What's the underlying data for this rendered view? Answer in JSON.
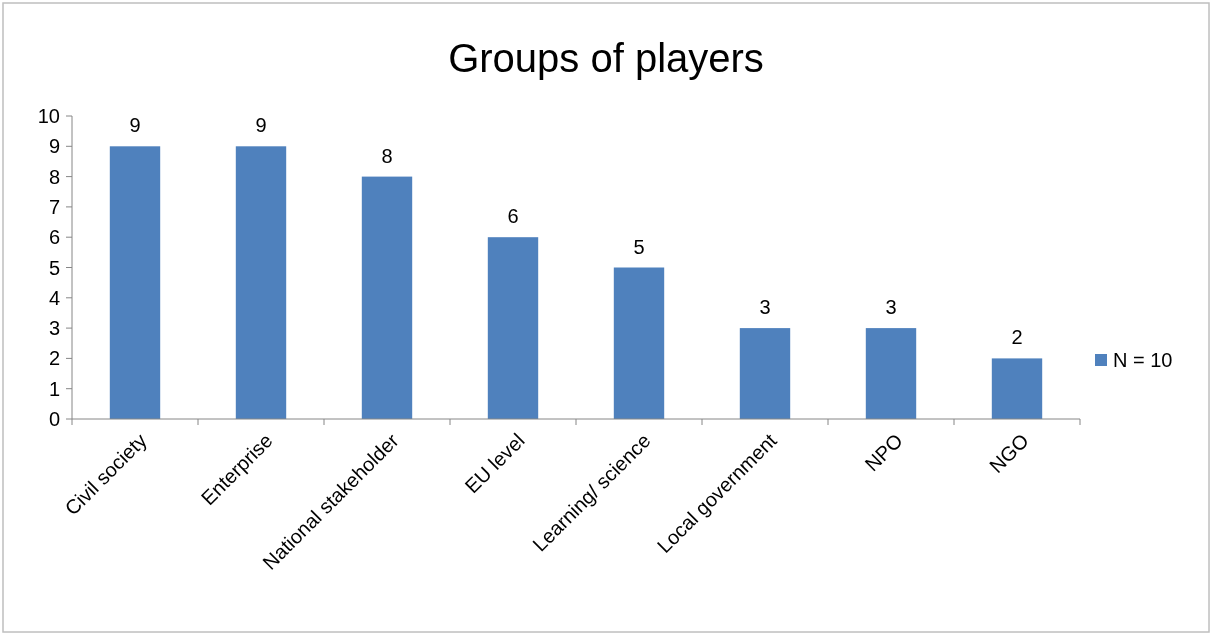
{
  "chart_data": {
    "type": "bar",
    "title": "Groups of players",
    "categories": [
      "Civil society",
      "Enterprise",
      "National stakeholder",
      "EU level",
      "Learning/ science",
      "Local government",
      "NPO",
      "NGO"
    ],
    "series": [
      {
        "name": "N = 10",
        "color": "#4f81bd",
        "values": [
          9,
          9,
          8,
          6,
          5,
          3,
          3,
          2
        ]
      }
    ],
    "ylim": [
      0,
      10
    ],
    "yticks": [
      0,
      1,
      2,
      3,
      4,
      5,
      6,
      7,
      8,
      9,
      10
    ],
    "grid": false,
    "legend": "right",
    "data_labels": true
  }
}
